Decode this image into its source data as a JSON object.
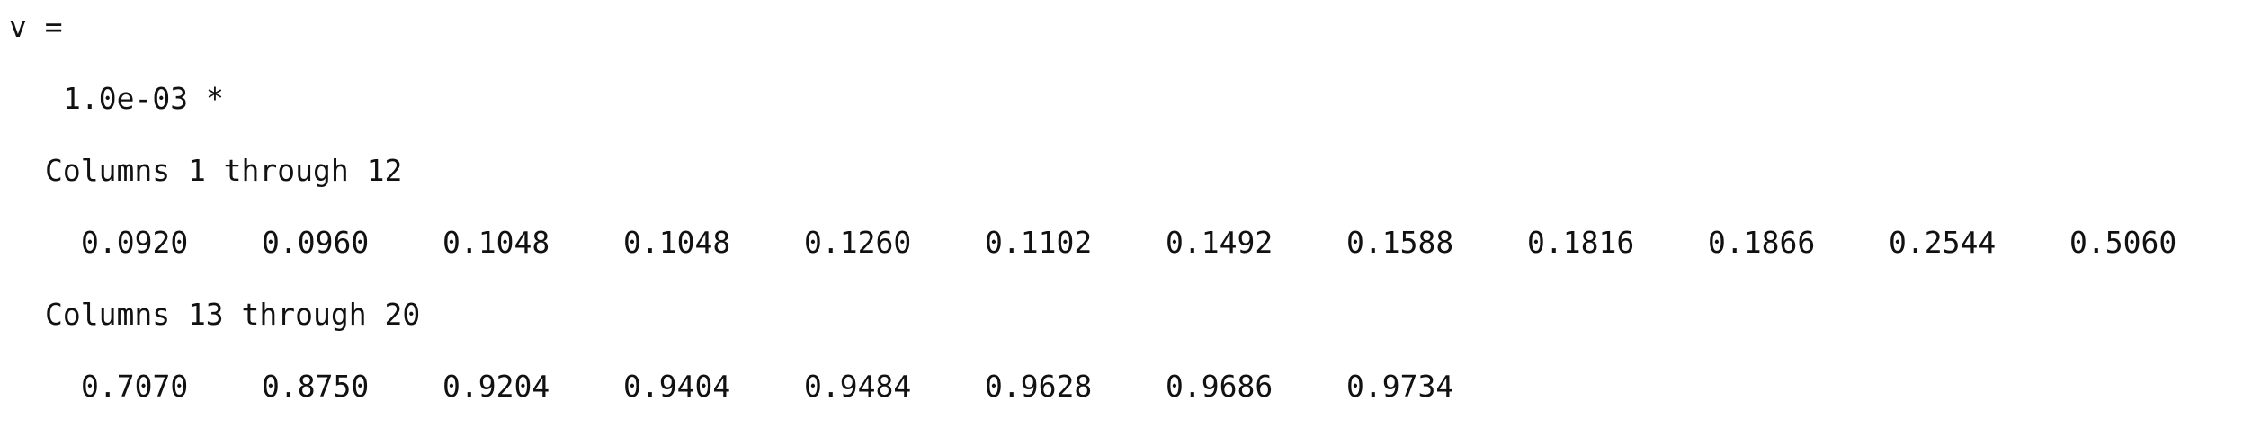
{
  "output": {
    "var_line": "v =",
    "scale_factor": "1.0e-03 *",
    "block1": {
      "header": "Columns 1 through 12",
      "values": [
        "0.0920",
        "0.0960",
        "0.1048",
        "0.1048",
        "0.1260",
        "0.1102",
        "0.1492",
        "0.1588",
        "0.1816",
        "0.1866",
        "0.2544",
        "0.5060"
      ]
    },
    "block2": {
      "header": "Columns 13 through 20",
      "values": [
        "0.7070",
        "0.8750",
        "0.9204",
        "0.9404",
        "0.9484",
        "0.9628",
        "0.9686",
        "0.9734"
      ]
    }
  }
}
